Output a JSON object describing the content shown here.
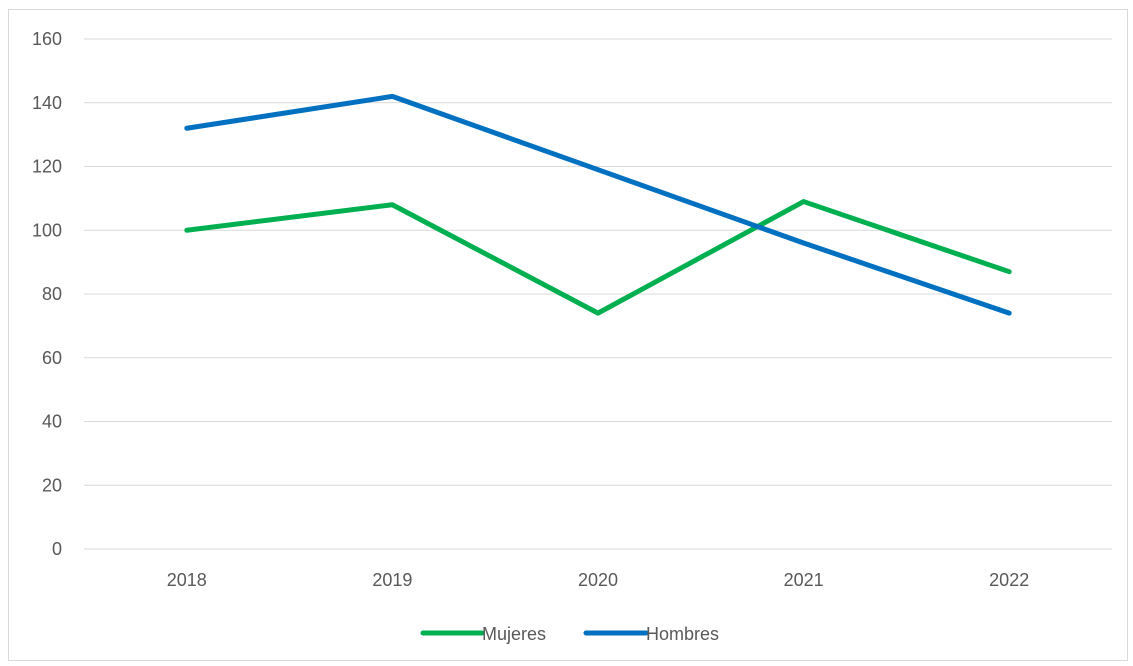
{
  "chart_data": {
    "type": "line",
    "title": "",
    "xlabel": "",
    "ylabel": "",
    "categories": [
      "2018",
      "2019",
      "2020",
      "2021",
      "2022"
    ],
    "ylim": [
      0,
      160
    ],
    "yticks": [
      0,
      20,
      40,
      60,
      80,
      100,
      120,
      140,
      160
    ],
    "grid": true,
    "legend": "bottom",
    "series": [
      {
        "name": "Mujeres",
        "color": "#00b050",
        "values": [
          100,
          108,
          74,
          109,
          87
        ]
      },
      {
        "name": "Hombres",
        "color": "#0070c0",
        "values": [
          132,
          142,
          119,
          96,
          74
        ]
      }
    ]
  }
}
